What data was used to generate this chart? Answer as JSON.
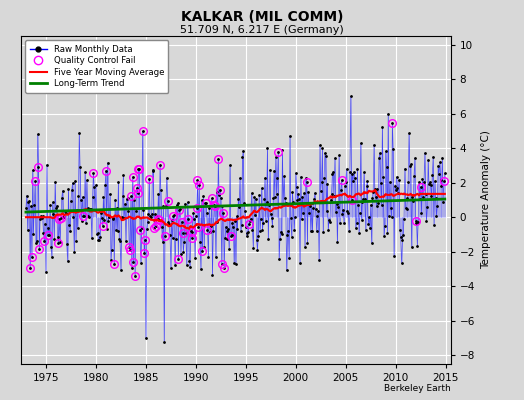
{
  "title": "KALKAR (MIL COMM)",
  "subtitle": "51.709 N, 6.217 E (Germany)",
  "ylabel": "Temperature Anomaly (°C)",
  "ylim": [
    -8.5,
    10.5
  ],
  "xlim": [
    1972.5,
    2015.5
  ],
  "xticks": [
    1975,
    1980,
    1985,
    1990,
    1995,
    2000,
    2005,
    2010,
    2015
  ],
  "yticks": [
    -8,
    -6,
    -4,
    -2,
    0,
    2,
    4,
    6,
    8,
    10
  ],
  "bg_color": "#d8d8d8",
  "grid_color": "white",
  "stem_color": "#6666ff",
  "line_color": "blue",
  "marker_color": "black",
  "qc_color": "magenta",
  "moving_avg_color": "red",
  "trend_color": "green",
  "figsize": [
    5.24,
    4.0
  ],
  "dpi": 100
}
